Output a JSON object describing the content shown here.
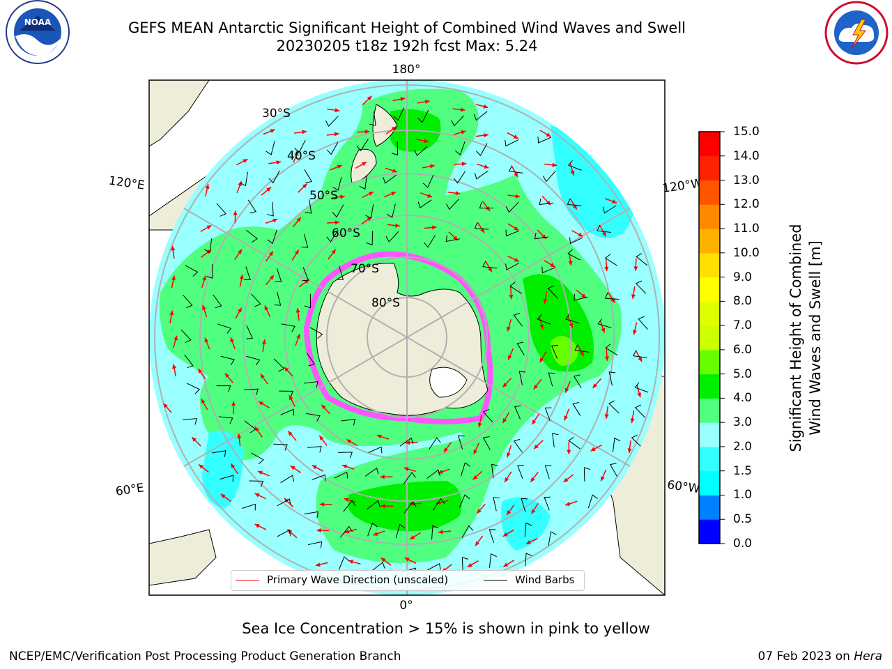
{
  "header": {
    "title_line1": "GEFS MEAN Antarctic Significant Height of Combined Wind Waves and Swell",
    "title_line2": "20230205 t18z 192h fcst   Max: 5.24"
  },
  "logos": {
    "noaa": {
      "text": "NOAA",
      "ring_text": "NATIONAL OCEANIC AND ATMOSPHERIC ADMINISTRATION · U.S. DEPARTMENT OF COMMERCE"
    },
    "nws": {
      "ring_text": "NATIONAL WEATHER SERVICE"
    }
  },
  "map": {
    "projection": "south polar stereographic",
    "latitude_labels": [
      "30°S",
      "40°S",
      "50°S",
      "60°S",
      "70°S",
      "80°S"
    ],
    "longitude_labels": {
      "top": "180°",
      "bottom": "0°",
      "upper_left": "120°E",
      "upper_right": "120°W",
      "lower_left": "60°E",
      "lower_right": "60°W"
    },
    "max_value": 5.24,
    "colors": {
      "land": "#eeedda",
      "ocean_base": "#99ffff",
      "ice": "#ff55ff",
      "wave_arrow": "#ff0000",
      "wind_barb": "#000000"
    }
  },
  "colorbar": {
    "label_line1": "Significant Height of Combined",
    "label_line2": "Wind Waves and Swell [m]",
    "ticks": [
      "0.0",
      "0.5",
      "1.0",
      "1.5",
      "2.0",
      "3.0",
      "4.0",
      "5.0",
      "6.0",
      "7.0",
      "8.0",
      "9.0",
      "10.0",
      "11.0",
      "12.0",
      "13.0",
      "14.0",
      "15.0"
    ],
    "colors": [
      "#0000ff",
      "#0080ff",
      "#00ffff",
      "#33ffff",
      "#99ffff",
      "#50ff80",
      "#00ee00",
      "#66ff00",
      "#ccff00",
      "#ddff00",
      "#ffff00",
      "#ffe000",
      "#ffb000",
      "#ff8800",
      "#ff5500",
      "#ff2200",
      "#ff0000"
    ]
  },
  "legend": {
    "items": [
      {
        "label": "Primary Wave Direction (unscaled)",
        "color": "#ff0000"
      },
      {
        "label": "Wind Barbs",
        "color": "#000000"
      }
    ]
  },
  "notes": {
    "sea_ice": "Sea Ice Concentration > 15% is shown in pink to yellow"
  },
  "footer": {
    "left": "NCEP/EMC/Verification Post Processing Product Generation Branch",
    "right_date": "07 Feb 2023 on ",
    "right_host": "Hera"
  }
}
